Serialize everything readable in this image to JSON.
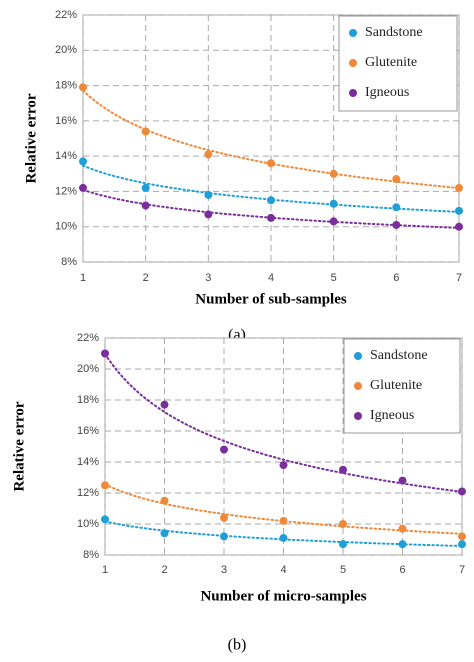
{
  "chart_data": [
    {
      "type": "scatter",
      "trendline": "power",
      "x": [
        1,
        2,
        3,
        4,
        5,
        6,
        7
      ],
      "xlim": [
        1,
        7
      ],
      "xticks": [
        1,
        2,
        3,
        4,
        5,
        6,
        7
      ],
      "ylim": [
        8,
        22
      ],
      "yticks": [
        {
          "value": 8,
          "label": "8%"
        },
        {
          "value": 10,
          "label": "10%"
        },
        {
          "value": 12,
          "label": "12%"
        },
        {
          "value": 14,
          "label": "14%"
        },
        {
          "value": 16,
          "label": "16%"
        },
        {
          "value": 18,
          "label": "18%"
        },
        {
          "value": 20,
          "label": "20%"
        },
        {
          "value": 22,
          "label": "22%"
        }
      ],
      "xlabel": "Number of sub-samples",
      "ylabel": "Relative error",
      "caption": "(a)",
      "grid": true,
      "legend": "upper right",
      "series": [
        {
          "name": "Sandstone",
          "color": "#1f9fd8",
          "values": [
            13.7,
            12.2,
            11.8,
            11.5,
            11.3,
            11.1,
            10.9
          ]
        },
        {
          "name": "Glutenite",
          "color": "#f0883a",
          "values": [
            17.9,
            15.4,
            14.1,
            13.6,
            13.0,
            12.7,
            12.2
          ]
        },
        {
          "name": "Igneous",
          "color": "#7a2e9e",
          "values": [
            12.2,
            11.2,
            10.7,
            10.5,
            10.3,
            10.1,
            10.0
          ]
        }
      ]
    },
    {
      "type": "scatter",
      "trendline": "power",
      "x": [
        1,
        2,
        3,
        4,
        5,
        6,
        7
      ],
      "xlim": [
        1,
        7
      ],
      "xticks": [
        1,
        2,
        3,
        4,
        5,
        6,
        7
      ],
      "ylim": [
        8,
        22
      ],
      "yticks": [
        {
          "value": 8,
          "label": "8%"
        },
        {
          "value": 10,
          "label": "10%"
        },
        {
          "value": 12,
          "label": "12%"
        },
        {
          "value": 14,
          "label": "14%"
        },
        {
          "value": 16,
          "label": "16%"
        },
        {
          "value": 18,
          "label": "18%"
        },
        {
          "value": 20,
          "label": "20%"
        },
        {
          "value": 22,
          "label": "22%"
        }
      ],
      "xlabel": "Number of micro-samples",
      "ylabel": "Relative error",
      "caption": "(b)",
      "grid": true,
      "legend": "upper right",
      "series": [
        {
          "name": "Sandstone",
          "color": "#1f9fd8",
          "values": [
            10.3,
            9.4,
            9.2,
            9.1,
            8.7,
            8.7,
            8.7
          ]
        },
        {
          "name": "Glutenite",
          "color": "#f0883a",
          "values": [
            12.5,
            11.5,
            10.4,
            10.2,
            10.0,
            9.7,
            9.2
          ]
        },
        {
          "name": "Igneous",
          "color": "#7a2e9e",
          "values": [
            21.0,
            17.7,
            14.8,
            13.8,
            13.5,
            12.8,
            12.1
          ]
        }
      ]
    }
  ]
}
